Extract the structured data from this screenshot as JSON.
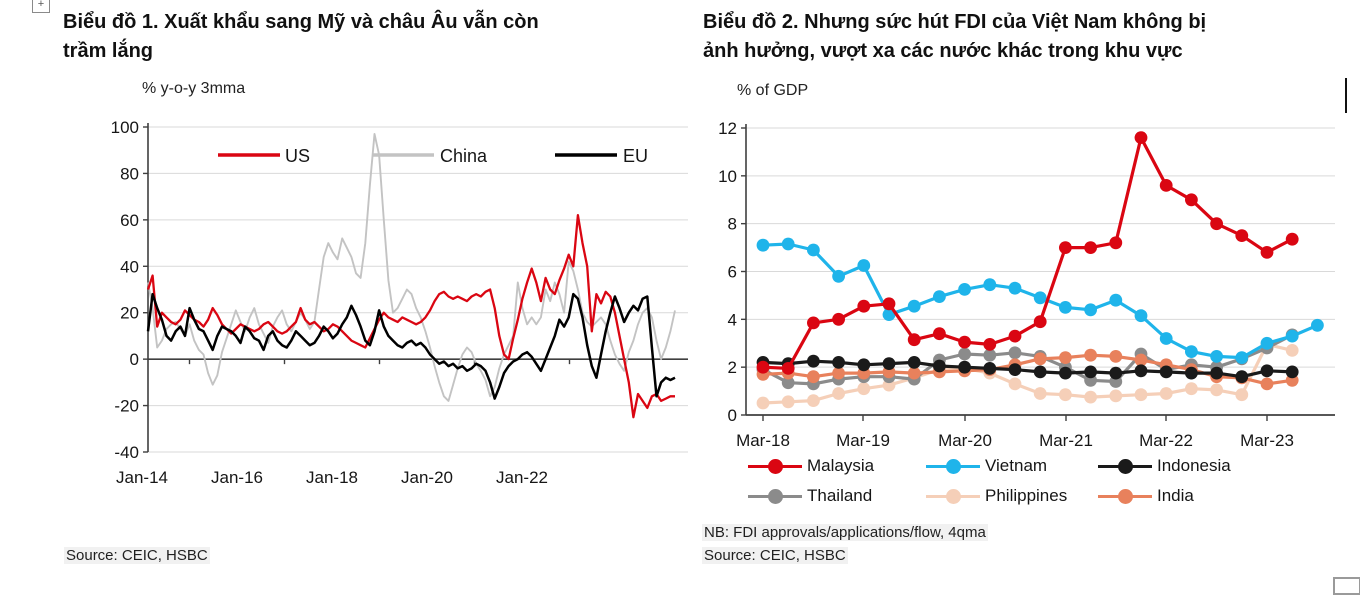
{
  "page": {
    "plus_handle_glyph": "+",
    "background": "#ffffff",
    "grid_color": "#d9d9d9",
    "axis_color": "#3f3f3f"
  },
  "chart_data": [
    {
      "type": "line",
      "title": "Biểu đồ 1. Xuất khẩu sang Mỹ và châu Âu vẫn còn trầm lắng",
      "title_lines": [
        "Biểu đồ 1. Xuất khẩu sang Mỹ và châu Âu vẫn còn",
        "trầm lắng"
      ],
      "unit_label": "% y-o-y 3mma",
      "source": "Source: CEIC, HSBC",
      "x_frequency": "monthly",
      "x_start": "Jan-2014",
      "x_end": "Jul-2023",
      "x_tick_labels": [
        "Jan-14",
        "Jan-16",
        "Jan-18",
        "Jan-20",
        "Jan-22"
      ],
      "ylim": [
        -40,
        100
      ],
      "y_ticks": [
        100,
        80,
        60,
        40,
        20,
        0,
        -20,
        -40
      ],
      "grid": true,
      "legend_position": "top-inside",
      "series": [
        {
          "name": "US",
          "color": "#da0612",
          "values": [
            30,
            36,
            14,
            20,
            18,
            16,
            15,
            17,
            21,
            19,
            17,
            16,
            14,
            17,
            22,
            19,
            15,
            13,
            11,
            13,
            15,
            14,
            13,
            12,
            13,
            15,
            16,
            14,
            12,
            11,
            12,
            14,
            16,
            22,
            17,
            15,
            16,
            14,
            12,
            13,
            15,
            14,
            12,
            10,
            8,
            7,
            6,
            5,
            9,
            13,
            17,
            20,
            18,
            17,
            16,
            18,
            17,
            16,
            15,
            16,
            18,
            21,
            25,
            28,
            29,
            27,
            26,
            27,
            26,
            25,
            27,
            28,
            27,
            29,
            30,
            22,
            10,
            2,
            0,
            9,
            17,
            26,
            33,
            39,
            33,
            25,
            35,
            30,
            28,
            34,
            39,
            45,
            40,
            62,
            50,
            40,
            12,
            28,
            24,
            29,
            27,
            20,
            10,
            0,
            -10,
            -25,
            -15,
            -18,
            -21,
            -16,
            -15,
            -18,
            -17,
            -16,
            -16
          ]
        },
        {
          "name": "China",
          "color": "#c3c3c3",
          "values": [
            33,
            22,
            5,
            8,
            13,
            15,
            16,
            13,
            10,
            15,
            8,
            4,
            2,
            -6,
            -11,
            -7,
            3,
            9,
            15,
            21,
            16,
            12,
            18,
            22,
            15,
            11,
            7,
            14,
            18,
            21,
            15,
            12,
            16,
            20,
            17,
            13,
            16,
            30,
            44,
            50,
            46,
            43,
            52,
            48,
            44,
            37,
            35,
            50,
            75,
            97,
            88,
            60,
            34,
            20,
            22,
            26,
            30,
            28,
            22,
            18,
            12,
            5,
            -3,
            -10,
            -16,
            -18,
            -11,
            -4,
            2,
            5,
            3,
            -2,
            -5,
            -9,
            -16,
            -12,
            -4,
            2,
            6,
            10,
            33,
            22,
            15,
            18,
            15,
            18,
            30,
            25,
            33,
            28,
            20,
            42,
            38,
            30,
            20,
            16,
            14,
            16,
            18,
            15,
            8,
            2,
            -2,
            -5,
            3,
            8,
            15,
            20,
            22,
            18,
            8,
            0,
            5,
            12,
            21
          ]
        },
        {
          "name": "EU",
          "color": "#000000",
          "values": [
            12,
            28,
            22,
            17,
            10,
            8,
            12,
            14,
            10,
            22,
            17,
            13,
            12,
            8,
            4,
            10,
            14,
            13,
            12,
            10,
            7,
            14,
            12,
            9,
            8,
            4,
            10,
            12,
            8,
            6,
            5,
            8,
            12,
            10,
            8,
            6,
            7,
            10,
            14,
            12,
            9,
            11,
            15,
            18,
            23,
            19,
            14,
            8,
            6,
            12,
            21,
            14,
            10,
            8,
            6,
            5,
            7,
            8,
            6,
            7,
            5,
            2,
            0,
            -2,
            -1,
            -3,
            -2,
            -4,
            -3,
            -5,
            -4,
            -2,
            -3,
            -5,
            -10,
            -17,
            -12,
            -6,
            -3,
            -1,
            0,
            2,
            3,
            1,
            -2,
            -5,
            0,
            5,
            10,
            17,
            14,
            18,
            28,
            26,
            18,
            6,
            -3,
            -8,
            2,
            12,
            20,
            27,
            22,
            16,
            20,
            23,
            21,
            26,
            27,
            5,
            -16,
            -10,
            -8,
            -9,
            -8
          ]
        }
      ]
    },
    {
      "type": "line",
      "title": "Biểu đồ 2. Nhưng sức hút FDI của Việt Nam không bị ảnh hưởng, vượt xa các nước khác trong khu vực",
      "title_lines": [
        "Biểu đồ 2. Nhưng sức hút FDI của Việt Nam không bị",
        "ảnh hưởng, vượt xa các nước khác trong khu vực"
      ],
      "unit_label": "% of GDP",
      "note": "NB: FDI approvals/applications/flow, 4qma",
      "source": "Source: CEIC, HSBC",
      "x_frequency": "quarterly",
      "x_start": "Mar-2018",
      "x_tick_labels": [
        "Mar-18",
        "Mar-19",
        "Mar-20",
        "Mar-21",
        "Mar-22",
        "Mar-23"
      ],
      "ylim": [
        0,
        12
      ],
      "y_ticks": [
        12,
        10,
        8,
        6,
        4,
        2,
        0
      ],
      "grid": true,
      "markers": true,
      "legend_position": "bottom",
      "legend_rows": [
        [
          "Malaysia",
          "Vietnam",
          "Indonesia"
        ],
        [
          "Thailand",
          "Philippines",
          "India"
        ]
      ],
      "series": [
        {
          "name": "Malaysia",
          "color": "#da0612",
          "values": [
            2.0,
            1.95,
            3.85,
            4.0,
            4.55,
            4.65,
            3.15,
            3.4,
            3.05,
            2.95,
            3.3,
            3.9,
            7.0,
            7.0,
            7.2,
            11.6,
            9.6,
            9.0,
            8.0,
            7.5,
            6.8,
            7.35
          ]
        },
        {
          "name": "Vietnam",
          "color": "#1fb4ea",
          "values": [
            7.1,
            7.15,
            6.9,
            5.8,
            6.25,
            4.2,
            4.55,
            4.95,
            5.25,
            5.45,
            5.3,
            4.9,
            4.5,
            4.4,
            4.8,
            4.15,
            3.2,
            2.65,
            2.45,
            2.4,
            3.0,
            3.3,
            3.75
          ]
        },
        {
          "name": "Indonesia",
          "color": "#1a1a1a",
          "values": [
            2.2,
            2.15,
            2.25,
            2.2,
            2.1,
            2.15,
            2.2,
            2.05,
            2.0,
            1.95,
            1.9,
            1.8,
            1.75,
            1.8,
            1.75,
            1.85,
            1.8,
            1.75,
            1.75,
            1.6,
            1.85,
            1.8
          ]
        },
        {
          "name": "Thailand",
          "color": "#8b8b8b",
          "values": [
            1.9,
            1.35,
            1.3,
            1.5,
            1.6,
            1.6,
            1.5,
            2.3,
            2.55,
            2.5,
            2.6,
            2.45,
            2.0,
            1.45,
            1.4,
            2.55,
            1.9,
            2.1,
            2.0,
            2.35,
            2.8,
            3.35
          ]
        },
        {
          "name": "Philippines",
          "color": "#f5cfb8",
          "values": [
            0.5,
            0.55,
            0.6,
            0.9,
            1.1,
            1.25,
            1.55,
            1.9,
            1.95,
            1.75,
            1.3,
            0.9,
            0.85,
            0.75,
            0.8,
            0.85,
            0.9,
            1.1,
            1.05,
            0.85,
            2.95,
            2.7
          ]
        },
        {
          "name": "India",
          "color": "#e8815c",
          "values": [
            1.7,
            1.75,
            1.6,
            1.75,
            1.75,
            1.8,
            1.75,
            1.8,
            1.85,
            1.9,
            2.1,
            2.35,
            2.4,
            2.5,
            2.45,
            2.3,
            2.1,
            1.9,
            1.6,
            1.55,
            1.3,
            1.45
          ]
        }
      ]
    }
  ]
}
